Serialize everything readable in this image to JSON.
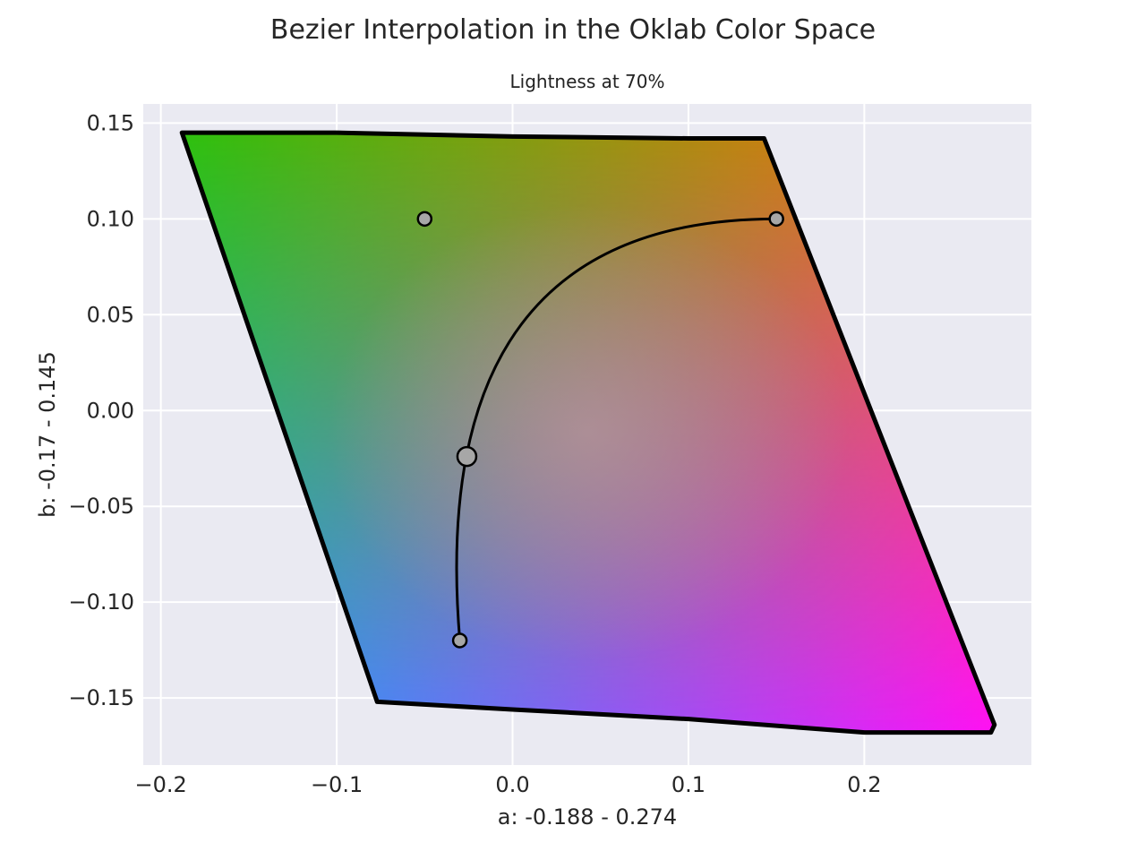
{
  "chart_data": {
    "type": "scatter",
    "title": "Bezier Interpolation in the Oklab Color Space",
    "subtitle": "Lightness at 70%",
    "xlabel": "a: -0.188 - 0.274",
    "ylabel": "b: -0.17 - 0.145",
    "xlim": [
      -0.21,
      0.295
    ],
    "ylim": [
      -0.185,
      0.16
    ],
    "xticks": [
      -0.2,
      -0.1,
      0.0,
      0.1,
      0.2
    ],
    "xtick_labels": [
      "−0.2",
      "−0.1",
      "0.0",
      "0.1",
      "0.2"
    ],
    "yticks": [
      0.15,
      0.1,
      0.05,
      0.0,
      -0.05,
      -0.1,
      -0.15
    ],
    "ytick_labels": [
      "0.15",
      "0.10",
      "0.05",
      "0.00",
      "−0.05",
      "−0.10",
      "−0.15"
    ],
    "grid": true,
    "background": "#eaeaf2",
    "gamut_boundary": {
      "x": [
        -0.188,
        -0.1,
        -0.0,
        0.1,
        0.143,
        0.274,
        0.272,
        0.2,
        0.1,
        0.0,
        -0.077,
        -0.188
      ],
      "y": [
        0.145,
        0.145,
        0.143,
        0.142,
        0.142,
        -0.164,
        -0.168,
        -0.168,
        -0.161,
        -0.156,
        -0.152,
        0.145
      ]
    },
    "gamut_corner_colors": {
      "top_left": "#2ec10e",
      "top_right": "#ff6a10",
      "bottom_right": "#ff10f4",
      "bottom_left": "#12a8ff",
      "center": "#b6959c"
    },
    "control_points": {
      "x": [
        0.15,
        -0.05,
        -0.03
      ],
      "y": [
        0.1,
        0.1,
        -0.12
      ]
    },
    "bezier_curve": {
      "start": [
        0.15,
        0.1
      ],
      "end": [
        -0.03,
        -0.12
      ],
      "controls": [
        [
          -0.05,
          0.1
        ]
      ]
    },
    "highlight_point": {
      "x": -0.026,
      "y": -0.024
    },
    "point_color": "#a7a7a7",
    "line_color": "#000000"
  }
}
